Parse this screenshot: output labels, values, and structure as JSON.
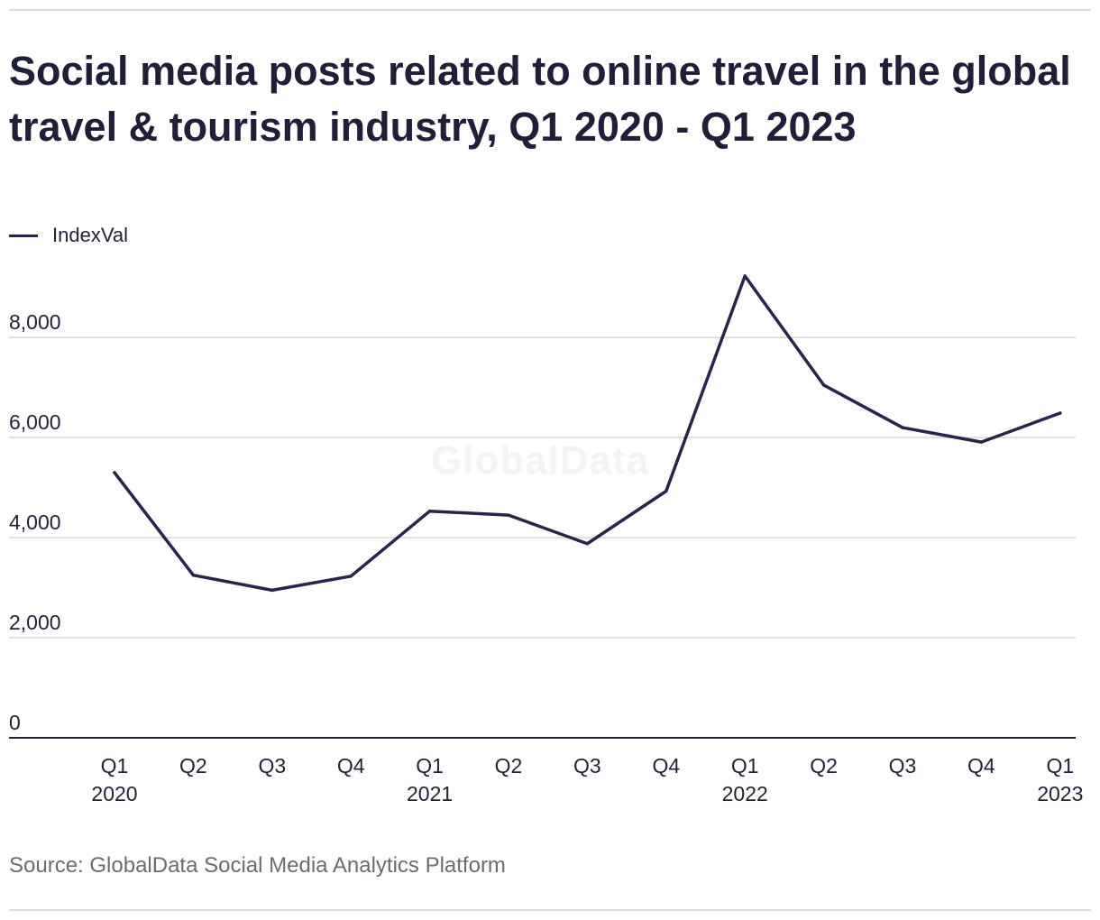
{
  "title": "Social media posts related to online travel in the global travel & tourism industry, Q1 2020 - Q1 2023",
  "legend": {
    "label": "IndexVal"
  },
  "watermark": "GlobalData",
  "source": "Source: GlobalData Social Media Analytics Platform",
  "colors": {
    "line": "#26264a",
    "grid": "#d6d6d6",
    "axis": "#1f1f3a",
    "text": "#22223a"
  },
  "chart_data": {
    "type": "line",
    "title": "Social media posts related to online travel in the global travel & tourism industry, Q1 2020 - Q1 2023",
    "xlabel": "",
    "ylabel": "",
    "categories": [
      [
        "Q1",
        "2020"
      ],
      [
        "Q2",
        ""
      ],
      [
        "Q3",
        ""
      ],
      [
        "Q4",
        ""
      ],
      [
        "Q1",
        "2021"
      ],
      [
        "Q2",
        ""
      ],
      [
        "Q3",
        ""
      ],
      [
        "Q4",
        ""
      ],
      [
        "Q1",
        "2022"
      ],
      [
        "Q2",
        ""
      ],
      [
        "Q3",
        ""
      ],
      [
        "Q4",
        ""
      ],
      [
        "Q1",
        "2023"
      ]
    ],
    "series": [
      {
        "name": "IndexVal",
        "values": [
          5300,
          3250,
          2950,
          3230,
          4530,
          4450,
          3880,
          4930,
          9230,
          7050,
          6200,
          5910,
          6490
        ]
      }
    ],
    "ylim": [
      0,
      9500
    ],
    "yticks": [
      0,
      2000,
      4000,
      6000,
      8000
    ],
    "ytick_labels": [
      "0",
      "2,000",
      "4,000",
      "6,000",
      "8,000"
    ],
    "grid": true,
    "legend_position": "top-left"
  }
}
